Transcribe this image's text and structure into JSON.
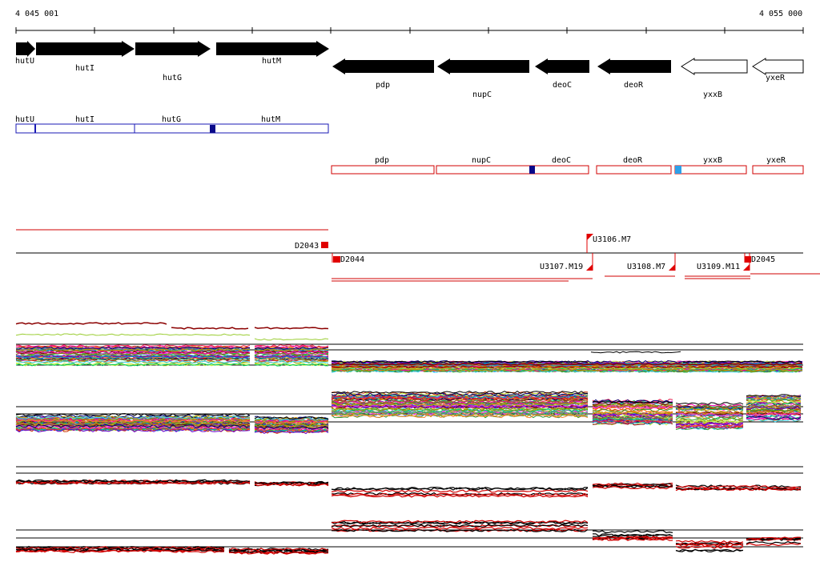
{
  "ruler": {
    "start": "4 045 001",
    "end": "4 055 000"
  },
  "colors": {
    "forward_gene": "#000000",
    "reverse_gene_outline": "#000000",
    "blue_track": "#1a1ab4",
    "blue_marker": "#0a0a8a",
    "red_track": "#d00000",
    "light_blue_marker": "#2ea0e8"
  },
  "gene_arrows": [
    {
      "label": "hutU",
      "filled": true
    },
    {
      "label": "hutI",
      "filled": true
    },
    {
      "label": "hutG",
      "filled": true
    },
    {
      "label": "hutM",
      "filled": true
    },
    {
      "label": "pdp",
      "filled": true
    },
    {
      "label": "nupC",
      "filled": true
    },
    {
      "label": "deoC",
      "filled": true
    },
    {
      "label": "deoR",
      "filled": true
    },
    {
      "label": "yxxB",
      "filled": false
    },
    {
      "label": "yxeR",
      "filled": false
    }
  ],
  "operon_forward": {
    "labels": [
      "hutU",
      "hutI",
      "hutG",
      "hutM"
    ]
  },
  "operon_reverse": {
    "labels": [
      "pdp",
      "nupC",
      "deoC",
      "deoR",
      "yxxB",
      "yxeR"
    ]
  },
  "segments": {
    "D2043": "D2043",
    "D2044": "D2044",
    "D2045": "D2045",
    "U3106": "U3106.M7",
    "U3107": "U3107.M19",
    "U3108": "U3108.M7",
    "U3109": "U3109.M11"
  }
}
